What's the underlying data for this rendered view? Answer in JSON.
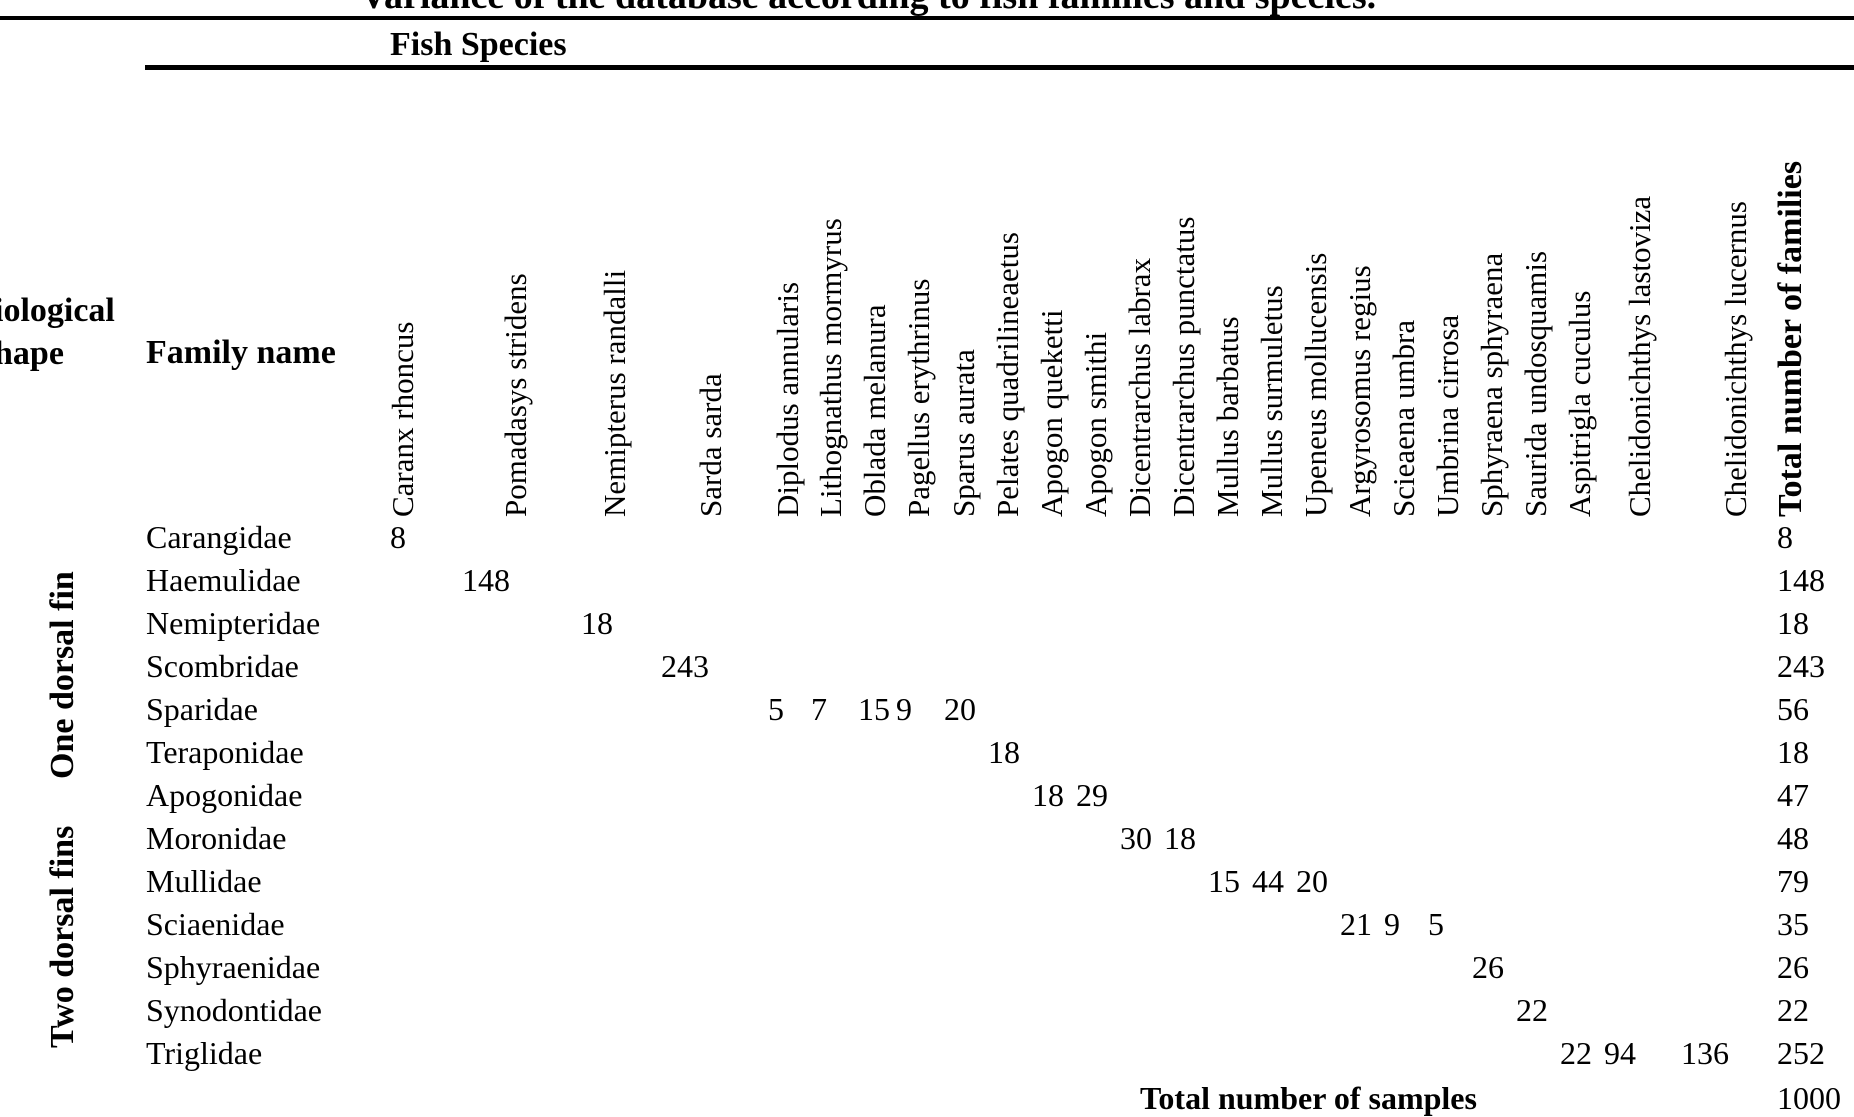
{
  "title": "Variance of the database according to fish families and species.",
  "fish_species_header": "Fish Species",
  "shape_header_line1": "iological",
  "shape_header_line2": "hape",
  "family_header": "Family name",
  "total_families_header": "Total number of families",
  "species": [
    "Caranx rhoncus",
    "Pomadasys stridens",
    "Nemipterus randalli",
    "Sarda sarda",
    "Diplodus annularis",
    "Lithognathus mormyrus",
    "Oblada melanura",
    "Pagellus erythrinus",
    "Sparus aurata",
    "Pelates quadrilineaetus",
    "Apogon queketti",
    "Apogon smithi",
    "Dicentrarchus labrax",
    "Dicentrarchus punctatus",
    "Mullus barbatus",
    "Mullus surmuletus",
    "Upeneus mollucensis",
    "Argyrosomus regius",
    "Scieaena umbra",
    "Umbrina cirrosa",
    "Sphyraena sphyraena",
    "Saurida undosquamis",
    "Aspitrigla cuculus",
    "Chelidonichthys lastoviza",
    "Chelidonichthys lucernus"
  ],
  "groups": [
    {
      "label": "One dorsal fin"
    },
    {
      "label": "Two dorsal fins"
    }
  ],
  "families": [
    {
      "name": "Carangidae",
      "counts": [
        "8"
      ],
      "total": "8"
    },
    {
      "name": "Haemulidae",
      "counts": [
        "148"
      ],
      "total": "148"
    },
    {
      "name": "Nemipteridae",
      "counts": [
        "18"
      ],
      "total": "18"
    },
    {
      "name": "Scombridae",
      "counts": [
        "243"
      ],
      "total": "243"
    },
    {
      "name": "Sparidae",
      "counts": [
        "5",
        "7",
        "15",
        "9",
        "20"
      ],
      "total": "56"
    },
    {
      "name": "Teraponidae",
      "counts": [
        "18"
      ],
      "total": "18"
    },
    {
      "name": "Apogonidae",
      "counts": [
        "18",
        "29"
      ],
      "total": "47"
    },
    {
      "name": "Moronidae",
      "counts": [
        "30",
        "18"
      ],
      "total": "48"
    },
    {
      "name": "Mullidae",
      "counts": [
        "15",
        "44",
        "20"
      ],
      "total": "79"
    },
    {
      "name": "Sciaenidae",
      "counts": [
        "21",
        "9",
        "5"
      ],
      "total": "35"
    },
    {
      "name": "Sphyraenidae",
      "counts": [
        "26"
      ],
      "total": "26"
    },
    {
      "name": "Synodontidae",
      "counts": [
        "22"
      ],
      "total": "22"
    },
    {
      "name": "Triglidae",
      "counts": [
        "22",
        "94",
        "136"
      ],
      "total": "252"
    }
  ],
  "total_samples_label": "Total number of samples",
  "total_samples_value": "1000"
}
